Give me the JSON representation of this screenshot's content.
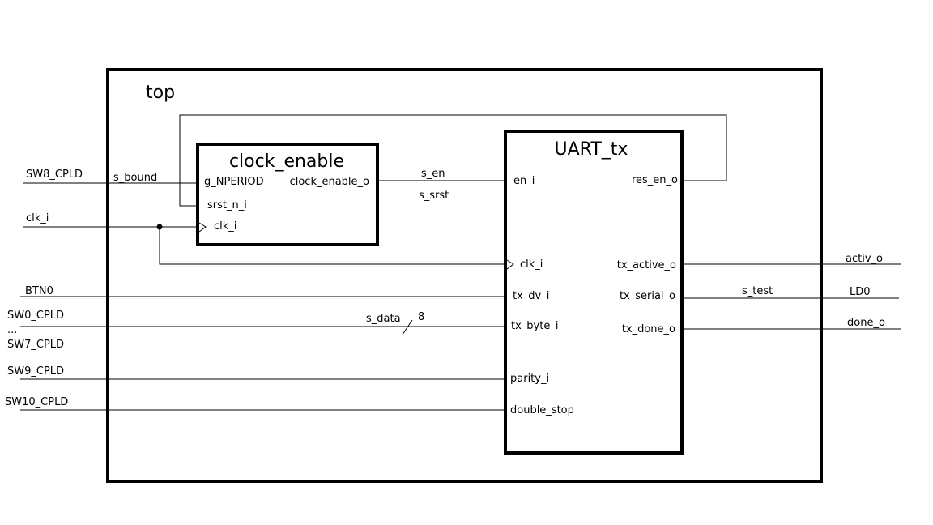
{
  "top_module": {
    "name": "top"
  },
  "clock_enable": {
    "name": "clock_enable",
    "ports": {
      "g_nperiod": "g_NPERIOD",
      "srst_n_i": "srst_n_i",
      "clk_i": "clk_i",
      "clock_enable_o": "clock_enable_o"
    }
  },
  "uart_tx": {
    "name": "UART_tx",
    "ports": {
      "en_i": "en_i",
      "res_en_o": "res_en_o",
      "clk_i": "clk_i",
      "tx_dv_i": "tx_dv_i",
      "tx_byte_i": "tx_byte_i",
      "parity_i": "parity_i",
      "double_stop": "double_stop",
      "tx_active_o": "tx_active_o",
      "tx_serial_o": "tx_serial_o",
      "tx_done_o": "tx_done_o"
    }
  },
  "inputs": {
    "sw8": "SW8_CPLD",
    "clk": "clk_i",
    "btn0": "BTN0",
    "sw0": "SW0_CPLD",
    "ellipsis": "...",
    "sw7": "SW7_CPLD",
    "sw9": "SW9_CPLD",
    "sw10": "SW10_CPLD"
  },
  "outputs": {
    "activ": "activ_o",
    "ld0": "LD0",
    "done": "done_o"
  },
  "signals": {
    "s_bound": "s_bound",
    "s_en": "s_en",
    "s_srst": "s_srst",
    "s_data": "s_data",
    "s_data_width": "8",
    "s_test": "s_test"
  }
}
